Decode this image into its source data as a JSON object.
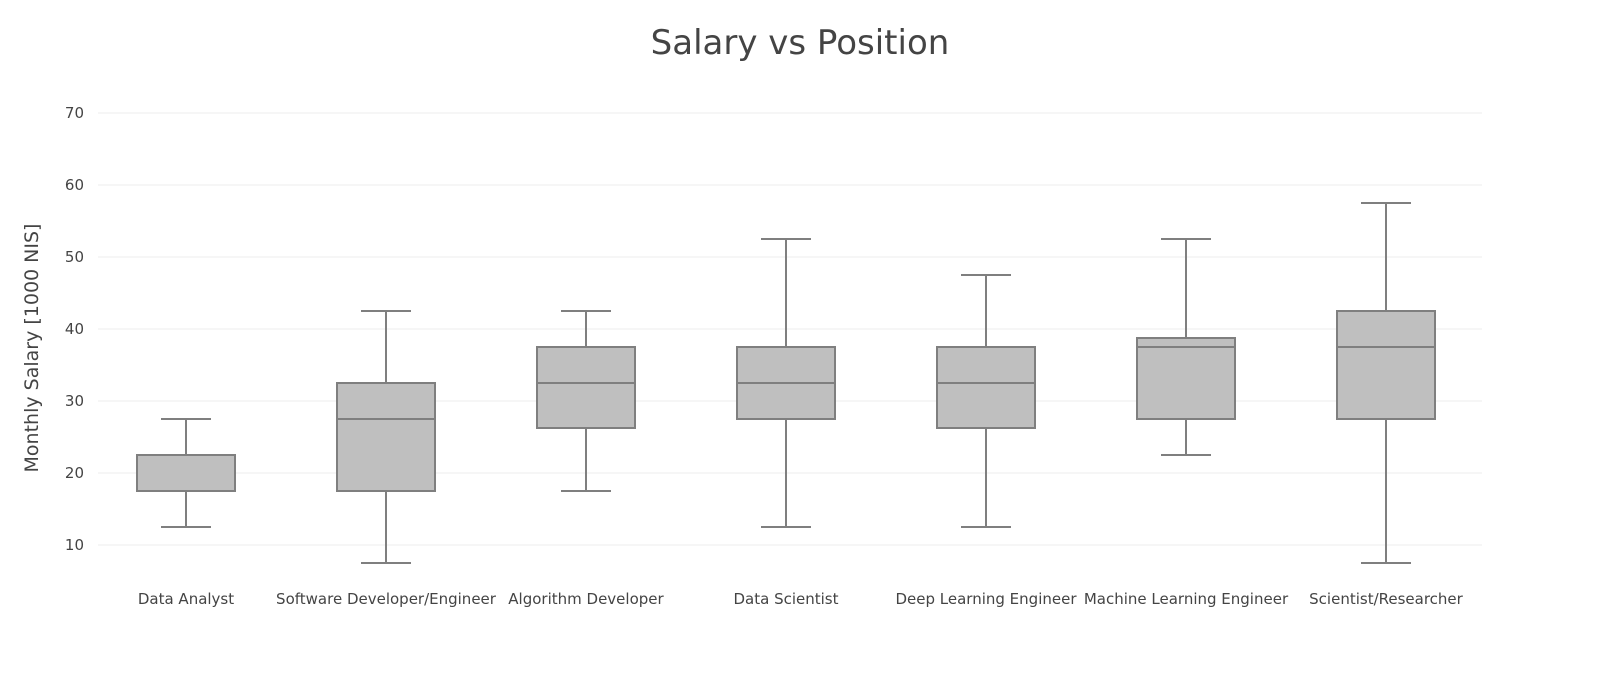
{
  "chart_data": {
    "type": "box",
    "title": "Salary vs Position",
    "xlabel": "",
    "ylabel": "Monthly Salary [1000 NIS]",
    "ylim": [
      5,
      70
    ],
    "yticks": [
      10,
      20,
      30,
      40,
      50,
      60,
      70
    ],
    "grid": true,
    "legend": "none",
    "colors": {
      "box_fill": "#bfbfbf",
      "box_line": "#7f7f7f",
      "grid": "#eeeeee",
      "text": "#444444"
    },
    "categories": [
      "Data Analyst",
      "Software Developer/Engineer",
      "Algorithm Developer",
      "Data Scientist",
      "Deep Learning Engineer",
      "Machine Learning Engineer",
      "Scientist/Researcher"
    ],
    "boxes": [
      {
        "min": 12.5,
        "q1": 17.5,
        "median": 17.5,
        "q3": 22.5,
        "max": 27.5
      },
      {
        "min": 7.5,
        "q1": 17.5,
        "median": 27.5,
        "q3": 32.5,
        "max": 42.5
      },
      {
        "min": 17.5,
        "q1": 26.25,
        "median": 32.5,
        "q3": 37.5,
        "max": 42.5
      },
      {
        "min": 12.5,
        "q1": 27.5,
        "median": 32.5,
        "q3": 37.5,
        "max": 52.5
      },
      {
        "min": 12.5,
        "q1": 26.25,
        "median": 32.5,
        "q3": 37.5,
        "max": 47.5
      },
      {
        "min": 22.5,
        "q1": 27.5,
        "median": 37.5,
        "q3": 38.75,
        "max": 52.5
      },
      {
        "min": 7.5,
        "q1": 27.5,
        "median": 37.5,
        "q3": 42.5,
        "max": 57.5
      }
    ]
  }
}
